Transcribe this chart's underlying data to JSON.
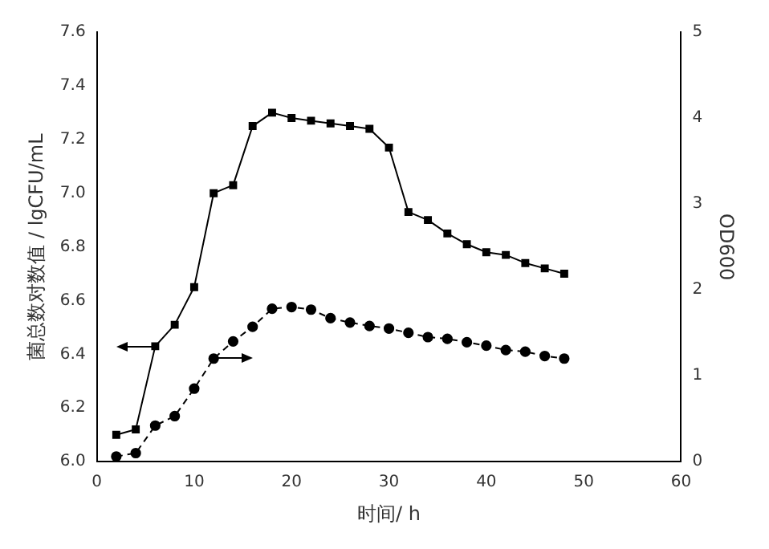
{
  "chart_data": {
    "type": "line",
    "xlabel": "时间/ h",
    "ylabel": "菌总数对数值 / lgCFU/mL",
    "y2label": "OD600",
    "xlim": [
      0,
      60
    ],
    "xticks": [
      0,
      10,
      20,
      30,
      40,
      50,
      60
    ],
    "ylim": [
      6.0,
      7.6
    ],
    "yticks": [
      {
        "value": 6.0,
        "label": "6.0"
      },
      {
        "value": 6.2,
        "label": "6.2"
      },
      {
        "value": 6.4,
        "label": "6.4"
      },
      {
        "value": 6.6,
        "label": "6.6"
      },
      {
        "value": 6.8,
        "label": "6.8"
      },
      {
        "value": 7.0,
        "label": "7.0"
      },
      {
        "value": 7.2,
        "label": "7.2"
      },
      {
        "value": 7.4,
        "label": "7.4"
      },
      {
        "value": 7.6,
        "label": "7.6"
      }
    ],
    "y2lim": [
      0,
      5
    ],
    "y2ticks": [
      0,
      1,
      2,
      3,
      4,
      5
    ],
    "grid": false,
    "legend": false,
    "x": [
      2,
      4,
      6,
      8,
      10,
      12,
      14,
      16,
      18,
      20,
      22,
      24,
      26,
      28,
      30,
      32,
      34,
      36,
      38,
      40,
      42,
      44,
      46,
      48
    ],
    "series": [
      {
        "color": "#000000",
        "marker": "square",
        "line_style": "solid",
        "values": [
          6.1,
          6.12,
          6.43,
          6.51,
          6.65,
          7.0,
          7.03,
          7.25,
          7.3,
          7.28,
          7.27,
          7.26,
          7.25,
          7.24,
          7.17,
          6.93,
          6.9,
          6.85,
          6.81,
          6.78,
          6.77,
          6.74,
          6.72,
          6.7
        ]
      },
      {
        "color": "#000000",
        "marker": "circle",
        "line_style": "dashed",
        "axis": "y2",
        "values": [
          0.06,
          0.1,
          0.42,
          0.53,
          0.85,
          1.2,
          1.4,
          1.57,
          1.78,
          1.8,
          1.77,
          1.67,
          1.62,
          1.58,
          1.55,
          1.5,
          1.45,
          1.43,
          1.39,
          1.35,
          1.3,
          1.28,
          1.23,
          1.2
        ]
      }
    ]
  }
}
